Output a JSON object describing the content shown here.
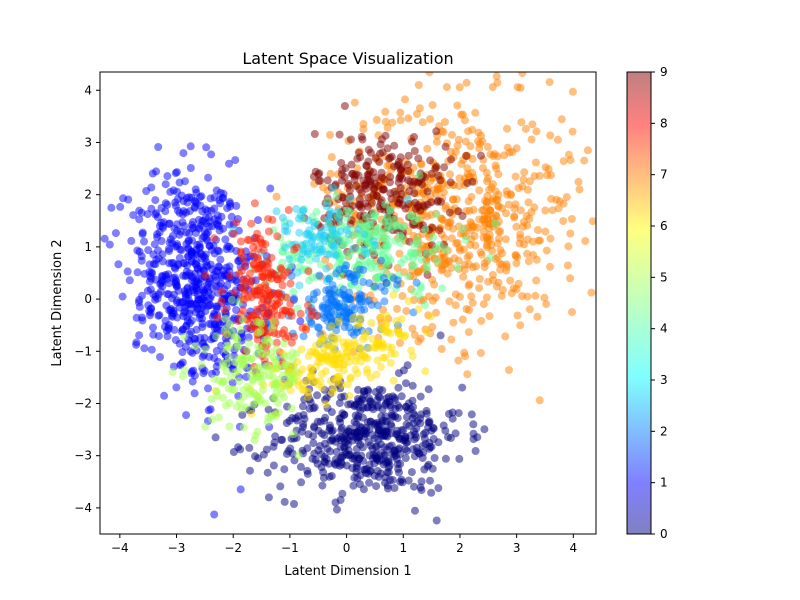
{
  "chart_data": {
    "type": "scatter",
    "title": "Latent Space Visualization",
    "xlabel": "Latent Dimension 1",
    "ylabel": "Latent Dimension 2",
    "xlim": [
      -4.35,
      4.4
    ],
    "ylim": [
      -4.5,
      4.35
    ],
    "x_ticks": [
      -4,
      -3,
      -2,
      -1,
      0,
      1,
      2,
      3,
      4
    ],
    "y_ticks": [
      -4,
      -3,
      -2,
      -1,
      0,
      1,
      2,
      3,
      4
    ],
    "grid": false,
    "colormap": "jet",
    "point_alpha": 0.5,
    "colorbar": {
      "min": 0,
      "max": 9,
      "ticks": [
        0,
        1,
        2,
        3,
        4,
        5,
        6,
        7,
        8,
        9
      ]
    },
    "clusters": [
      {
        "class": 1,
        "color": "#0000ff",
        "center": [
          -2.6,
          0.35
        ],
        "spread": [
          0.55,
          1.05
        ],
        "tilt": 0.25,
        "count": 650
      },
      {
        "class": 0,
        "color": "#00007f",
        "center": [
          0.35,
          -2.65
        ],
        "spread": [
          0.85,
          0.55
        ],
        "tilt": 0.05,
        "count": 500
      },
      {
        "class": 7,
        "color": "#ff7f00",
        "center": [
          1.9,
          1.6
        ],
        "spread": [
          1.05,
          1.1
        ],
        "tilt": -0.2,
        "count": 650
      },
      {
        "class": 9,
        "color": "#7f0000",
        "center": [
          0.65,
          2.05
        ],
        "spread": [
          0.6,
          0.6
        ],
        "tilt": 0.0,
        "count": 260
      },
      {
        "class": 4,
        "color": "#5fff97",
        "center": [
          0.3,
          0.95
        ],
        "spread": [
          0.85,
          0.45
        ],
        "tilt": 0.1,
        "count": 240
      },
      {
        "class": 3,
        "color": "#1ecff8",
        "center": [
          -0.55,
          1.15
        ],
        "spread": [
          0.45,
          0.35
        ],
        "tilt": 0.0,
        "count": 90
      },
      {
        "class": 2,
        "color": "#0071ff",
        "center": [
          -0.05,
          -0.15
        ],
        "spread": [
          0.45,
          0.35
        ],
        "tilt": 0.3,
        "count": 160
      },
      {
        "class": 8,
        "color": "#ff1d00",
        "center": [
          -1.45,
          0.05
        ],
        "spread": [
          0.35,
          0.7
        ],
        "tilt": 0.15,
        "count": 200
      },
      {
        "class": 6,
        "color": "#ffde00",
        "center": [
          -0.1,
          -1.15
        ],
        "spread": [
          0.75,
          0.25
        ],
        "tilt": 0.45,
        "count": 200
      },
      {
        "class": 5,
        "color": "#a3ff54",
        "center": [
          -1.6,
          -1.45
        ],
        "spread": [
          0.45,
          0.5
        ],
        "tilt": 0.4,
        "count": 170
      }
    ]
  }
}
